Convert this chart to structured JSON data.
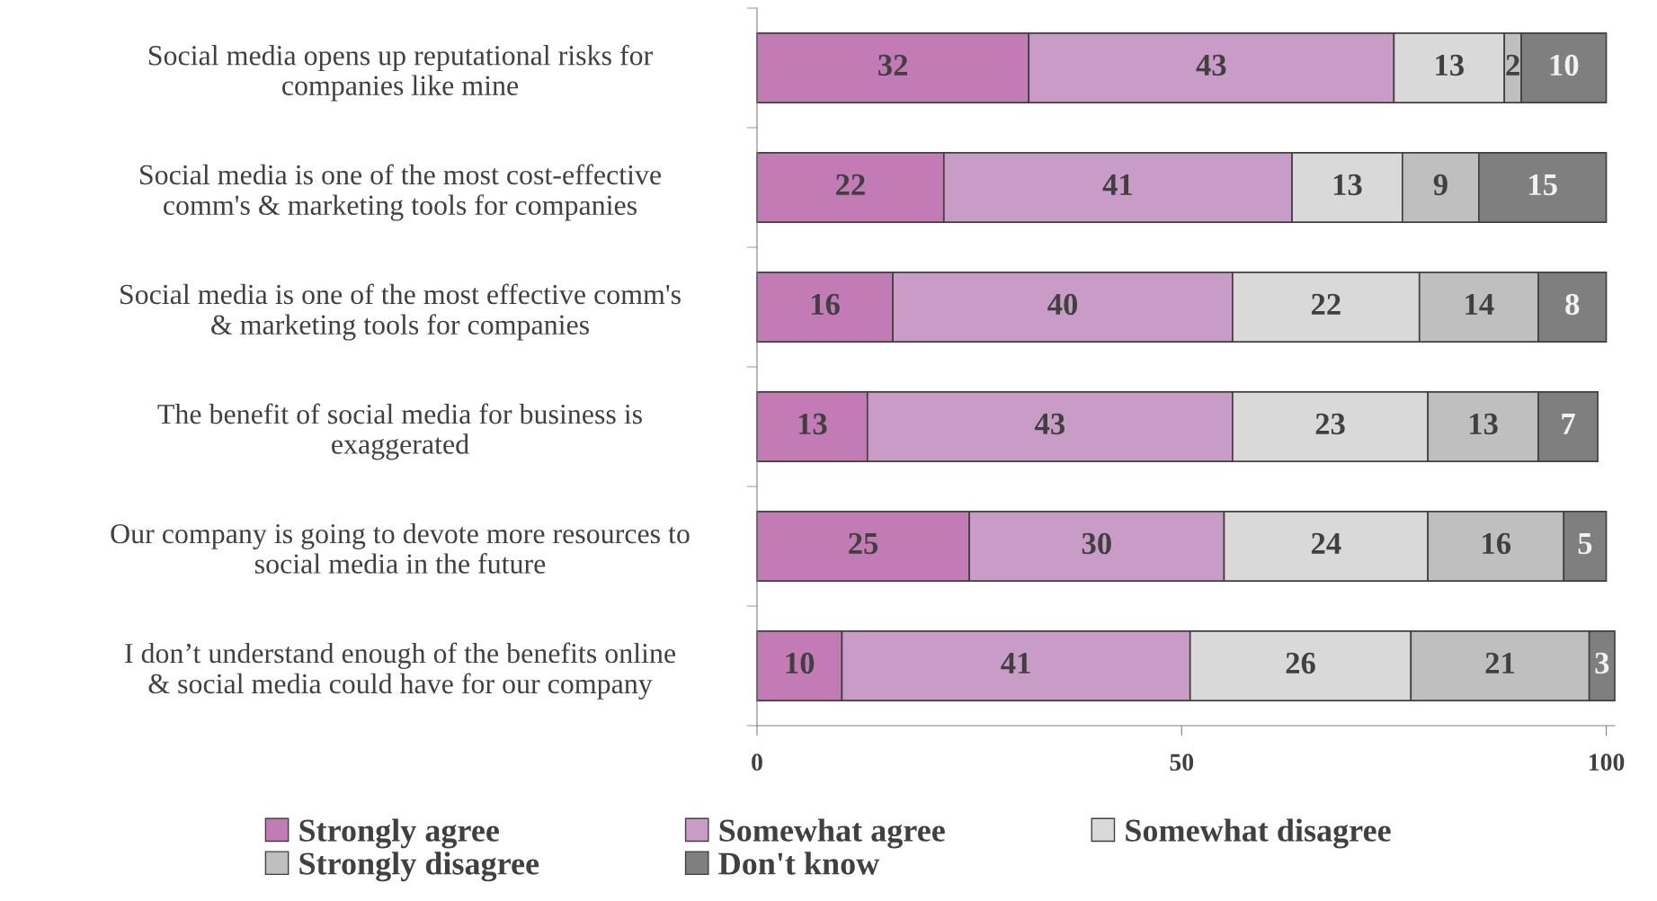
{
  "chart_data": {
    "type": "bar",
    "orientation": "horizontal",
    "stacked": true,
    "data_labels": true,
    "legend": "bottom",
    "grid": false,
    "categories": [
      "Social media opens up reputational risks for companies like mine",
      "Social media is one of the most cost-effective comm's & marketing tools for companies",
      "Social media is one of the most effective comm's & marketing tools for companies",
      "The benefit of social media for business is exaggerated",
      "Our company is going to devote more resources to social media in the future",
      "I don’t understand enough of the benefits online & social media could have for our company"
    ],
    "xlim": [
      0,
      101
    ],
    "xticks": [
      0,
      50,
      100
    ],
    "series": [
      {
        "name": "Strongly agree",
        "color": "#c27bb5",
        "values": [
          32,
          22,
          16,
          13,
          25,
          10
        ]
      },
      {
        "name": "Somewhat agree",
        "color": "#c99bc7",
        "values": [
          43,
          41,
          40,
          43,
          30,
          41
        ]
      },
      {
        "name": "Somewhat disagree",
        "color": "#d9d9d9",
        "values": [
          13,
          13,
          22,
          23,
          24,
          26
        ]
      },
      {
        "name": "Strongly disagree",
        "color": "#bfbfbf",
        "values": [
          2,
          9,
          14,
          13,
          16,
          21
        ]
      },
      {
        "name": "Don't know",
        "color": "#7f7f7f",
        "values": [
          10,
          15,
          8,
          7,
          5,
          3
        ]
      }
    ]
  }
}
